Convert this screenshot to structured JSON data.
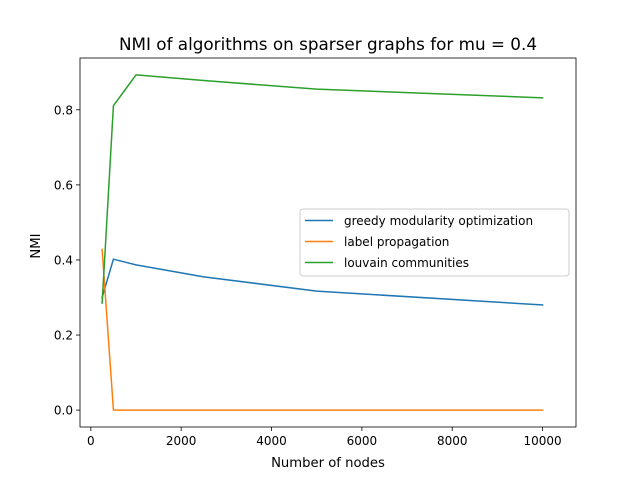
{
  "chart_data": {
    "type": "line",
    "title": "NMI of algorithms on sparser graphs for mu = 0.4",
    "xlabel": "Number of nodes",
    "ylabel": "NMI",
    "xlim": [
      -240,
      10740
    ],
    "ylim": [
      -0.045,
      0.938
    ],
    "xticks": [
      0,
      2000,
      4000,
      6000,
      8000,
      10000
    ],
    "xtick_labels": [
      "0",
      "2000",
      "4000",
      "6000",
      "8000",
      "10000"
    ],
    "yticks": [
      0.0,
      0.2,
      0.4,
      0.6,
      0.8
    ],
    "ytick_labels": [
      "0.0",
      "0.2",
      "0.4",
      "0.6",
      "0.8"
    ],
    "grid": false,
    "legend_position": "center-right",
    "series": [
      {
        "name": "greedy modularity optimization",
        "color": "#1f77b4",
        "x": [
          250,
          500,
          1000,
          2500,
          5000,
          10000
        ],
        "y": [
          0.3,
          0.402,
          0.387,
          0.355,
          0.317,
          0.28
        ]
      },
      {
        "name": "label propagation",
        "color": "#ff7f0e",
        "x": [
          250,
          500,
          1000,
          2500,
          5000,
          10000
        ],
        "y": [
          0.428,
          0.0,
          0.0,
          0.0,
          0.0,
          0.0
        ]
      },
      {
        "name": "louvain communities",
        "color": "#2ca02c",
        "x": [
          250,
          500,
          1000,
          2500,
          5000,
          10000
        ],
        "y": [
          0.285,
          0.811,
          0.893,
          0.878,
          0.855,
          0.832
        ]
      }
    ]
  }
}
